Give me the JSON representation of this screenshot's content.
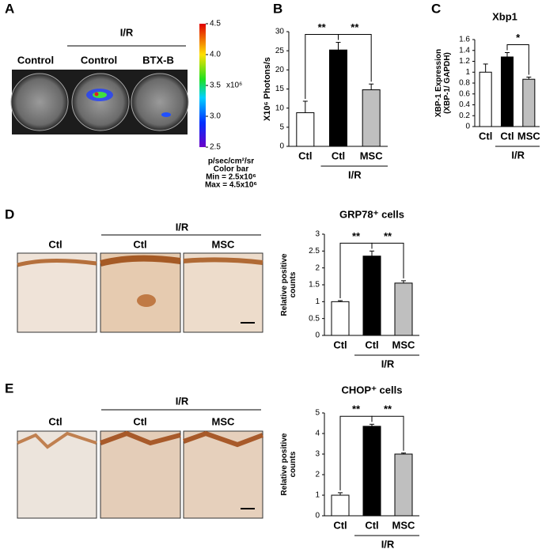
{
  "panel_labels": [
    "A",
    "B",
    "C",
    "D",
    "E"
  ],
  "panel_a": {
    "group_label": "I/R",
    "columns": [
      "Control",
      "Control",
      "BTX-B"
    ],
    "colorbar": {
      "lim": [
        2.5,
        4.5
      ],
      "ticks": [
        2.5,
        {
          "value": 3,
          "label": "3.0"
        },
        3.5,
        {
          "value": 4,
          "label": "4.0"
        },
        4.5
      ],
      "unit": "x10⁶"
    },
    "legend": [
      "p/sec/cm²/sr",
      "Color bar",
      "Min = 2.5x10⁶",
      "Max = 4.5x10⁶"
    ]
  },
  "panel_d_images": {
    "group_label": "I/R",
    "columns": [
      "Ctl",
      "Ctl",
      "MSC"
    ]
  },
  "panel_e_images": {
    "group_label": "I/R",
    "columns": [
      "Ctl",
      "Ctl",
      "MSC"
    ]
  },
  "chart_data": [
    {
      "type": "bar",
      "y_label": "X10⁶ Photons/s",
      "categories": [
        "Ctl",
        "Ctl",
        "MSC"
      ],
      "group_label": "I/R",
      "values": [
        8.8,
        25.2,
        14.8
      ],
      "errors": [
        3,
        2,
        1.5
      ],
      "colors": [
        "#ffffff",
        "#000000",
        "#bfbfbf"
      ],
      "ylim": [
        0,
        30
      ],
      "yticks": [
        0,
        5,
        10,
        15,
        20,
        25,
        30
      ],
      "annotations": [
        "**",
        "**"
      ]
    },
    {
      "type": "bar",
      "title": "Xbp1",
      "y_label": [
        "XBP-1 Expression",
        "(XBP-1/ GAPDH)"
      ],
      "categories": [
        "Ctl",
        "Ctl",
        "MSC"
      ],
      "group_label": "I/R",
      "values": [
        1.0,
        1.28,
        0.87
      ],
      "errors": [
        0.15,
        0.08,
        0.04
      ],
      "colors": [
        "#ffffff",
        "#000000",
        "#bfbfbf"
      ],
      "ylim": [
        0,
        1.6
      ],
      "yticks": [
        0,
        0.2,
        0.4,
        0.6,
        0.8,
        1,
        1.2,
        1.4,
        1.6
      ],
      "annotations": [
        "*"
      ]
    },
    {
      "type": "bar",
      "title": "GRP78⁺ cells",
      "y_label": [
        "Relative positive",
        "counts"
      ],
      "categories": [
        "Ctl",
        "Ctl",
        "MSC"
      ],
      "group_label": "I/R",
      "values": [
        1.0,
        2.35,
        1.55
      ],
      "errors": [
        0.03,
        0.15,
        0.07
      ],
      "colors": [
        "#ffffff",
        "#000000",
        "#bfbfbf"
      ],
      "ylim": [
        0,
        3
      ],
      "yticks": [
        0,
        0.5,
        1,
        1.5,
        2,
        2.5,
        3
      ],
      "annotations": [
        "**",
        "**"
      ]
    },
    {
      "type": "bar",
      "title": "CHOP⁺ cells",
      "y_label": [
        "Relative positive",
        "counts"
      ],
      "categories": [
        "Ctl",
        "Ctl",
        "MSC"
      ],
      "group_label": "I/R",
      "values": [
        1.0,
        4.35,
        3.0
      ],
      "errors": [
        0.12,
        0.1,
        0.05
      ],
      "colors": [
        "#ffffff",
        "#000000",
        "#bfbfbf"
      ],
      "ylim": [
        0,
        5
      ],
      "yticks": [
        0,
        1,
        2,
        3,
        4,
        5
      ],
      "annotations": [
        "**",
        "**"
      ]
    }
  ]
}
